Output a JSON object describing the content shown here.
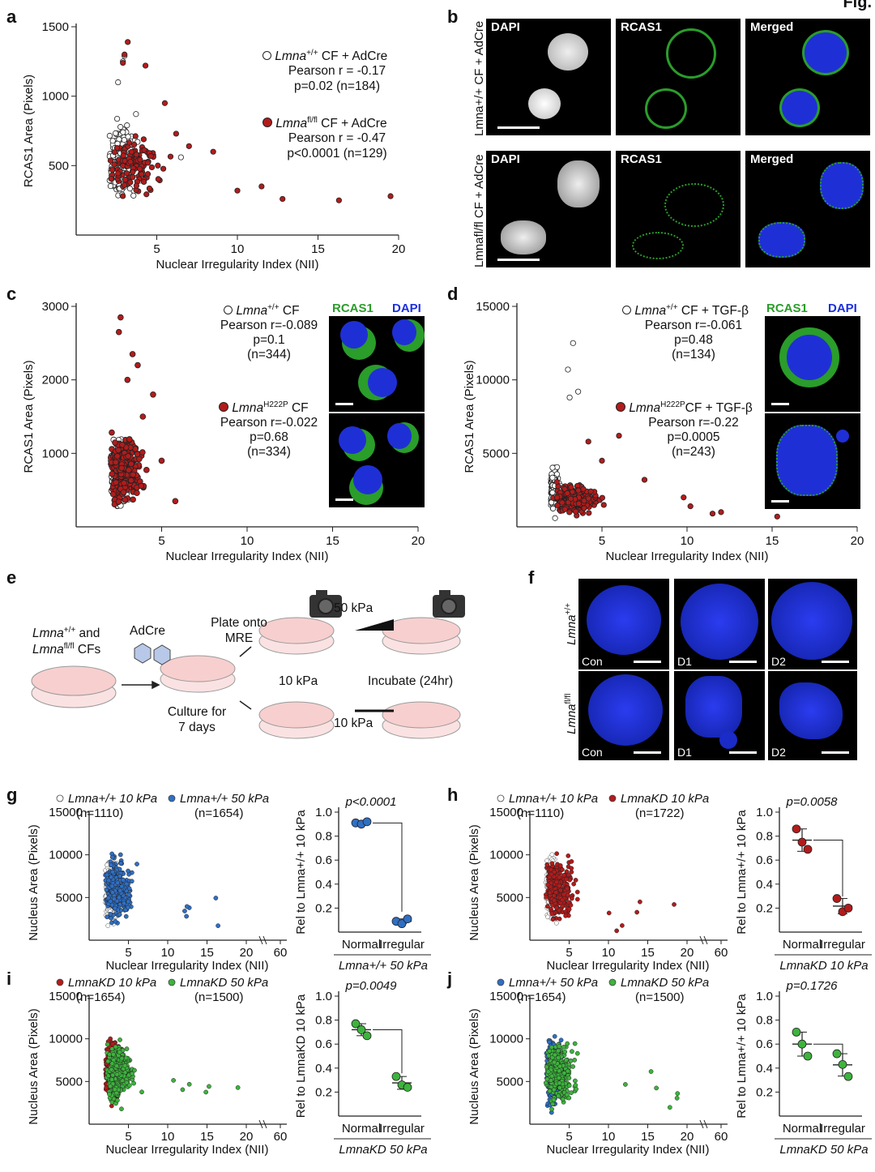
{
  "figure": {
    "label": "Fig."
  },
  "panels": {
    "a": {
      "label": "a",
      "xlabel": "Nuclear Irregularity Index (NII)",
      "ylabel": "RCAS1 Area (Pixels)",
      "xticks": [
        "5",
        "10",
        "15",
        "20"
      ],
      "yticks": [
        "500",
        "1000",
        "1500"
      ],
      "leg1": {
        "gene": "Lmna",
        "sup": "+/+",
        "rest": " CF + AdCre",
        "stat1": "Pearson r = -0.17",
        "stat2": "p=0.02 (n=184)"
      },
      "leg2": {
        "gene": "Lmna",
        "sup": "fl/fl",
        "rest": " CF + AdCre",
        "stat1": "Pearson r = -0.47",
        "stat2": "p<0.0001 (n=129)"
      }
    },
    "b": {
      "label": "b",
      "row1": "Lmna+/+ CF + AdCre",
      "row2": "Lmnafl/fl CF + AdCre",
      "cols": [
        "DAPI",
        "RCAS1",
        "Merged"
      ]
    },
    "c": {
      "label": "c",
      "xlabel": "Nuclear Irregularity Index (NII)",
      "ylabel": "RCAS1 Area (Pixels)",
      "xticks": [
        "5",
        "10",
        "15",
        "20"
      ],
      "yticks": [
        "1000",
        "2000",
        "3000"
      ],
      "leg1": {
        "gene": "Lmna",
        "sup": "+/+",
        "rest": " CF",
        "stat1": "Pearson r=-0.089",
        "stat2": "p=0.1",
        "stat3": "(n=344)"
      },
      "leg2": {
        "gene": "Lmna",
        "sup": "H222P",
        "rest": " CF",
        "stat1": "Pearson r=-0.022",
        "stat2": "p=0.68",
        "stat3": "(n=334)"
      },
      "img_label_green": "RCAS1",
      "img_label_blue": "DAPI"
    },
    "d": {
      "label": "d",
      "xlabel": "Nuclear Irregularity Index (NII)",
      "ylabel": "RCAS1 Area (Pixels)",
      "xticks": [
        "5",
        "10",
        "15",
        "20"
      ],
      "yticks": [
        "5000",
        "10000",
        "15000"
      ],
      "leg1": {
        "gene": "Lmna",
        "sup": "+/+",
        "rest": " CF + TGF-β",
        "stat1": "Pearson r=-0.061",
        "stat2": "p=0.48",
        "stat3": "(n=134)"
      },
      "leg2": {
        "gene": "Lmna",
        "sup": "H222P",
        "rest": "CF + TGF-β",
        "stat1": "Pearson r=-0.22",
        "stat2": "p=0.0005",
        "stat3": "(n=243)"
      },
      "img_label_green": "RCAS1",
      "img_label_blue": "DAPI"
    },
    "e": {
      "label": "e",
      "cells": "Lmna+/+ and",
      "cells2": "Lmnafl/fl CFs",
      "adcre": "AdCre",
      "culture1": "Culture for",
      "culture2": "7 days",
      "plate1": "Plate onto",
      "plate2": "MRE",
      "kpa50": "50 kPa",
      "kpa10a": "10 kPa",
      "kpa10b": "10 kPa",
      "incubate": "Incubate (24hr)"
    },
    "f": {
      "label": "f",
      "row1": "Lmna+/+",
      "row2": "Lmnafl/fl",
      "cols": [
        "Con",
        "D1",
        "D2"
      ]
    },
    "g": {
      "label": "g",
      "leg1": "Lmna+/+ 10 kPa",
      "n1": "(n=1110)",
      "leg2": "Lmna+/+ 50 kPa",
      "n2": "(n=1654)",
      "ylabel": "Nucleus Area (Pixels)",
      "xlabel": "Nuclear Irregularity Index (NII)",
      "xticks": [
        "5",
        "10",
        "15",
        "20",
        "60"
      ],
      "yticks": [
        "5000",
        "10000",
        "15000"
      ],
      "pval": "p<0.0001",
      "rylabel": "Rel to Lmna+/+ 10 kPa",
      "rticks": [
        "0.2",
        "0.4",
        "0.6",
        "0.8",
        "1.0"
      ],
      "cat1": "Normal",
      "cat2": "Irregular",
      "group": "Lmna+/+ 50 kPa"
    },
    "h": {
      "label": "h",
      "leg1": "Lmna+/+ 10 kPa",
      "n1": "(n=1110)",
      "leg2": "LmnaKD 10 kPa",
      "n2": "(n=1722)",
      "ylabel": "Nucleus Area (Pixels)",
      "xlabel": "Nuclear Irregularity Index (NII)",
      "xticks": [
        "5",
        "10",
        "15",
        "20",
        "60"
      ],
      "yticks": [
        "5000",
        "10000",
        "15000"
      ],
      "pval": "p=0.0058",
      "rylabel": "Rel to Lmna+/+ 10 kPa",
      "rticks": [
        "0.2",
        "0.4",
        "0.6",
        "0.8",
        "1.0"
      ],
      "cat1": "Normal",
      "cat2": "Irregular",
      "group": "LmnaKD 10 kPa"
    },
    "i": {
      "label": "i",
      "leg1": "LmnaKD 10 kPa",
      "n1": "(n=1654)",
      "leg2": "LmnaKD 50 kPa",
      "n2": "(n=1500)",
      "ylabel": "Nucleus Area (Pixels)",
      "xlabel": "Nuclear Irregularity Index (NII)",
      "xticks": [
        "5",
        "10",
        "15",
        "20",
        "60"
      ],
      "yticks": [
        "5000",
        "10000",
        "15000"
      ],
      "pval": "p=0.0049",
      "rylabel": "Rel to LmnaKD 10 kPa",
      "rticks": [
        "0.2",
        "0.4",
        "0.6",
        "0.8",
        "1.0"
      ],
      "cat1": "Normal",
      "cat2": "Irregular",
      "group": "LmnaKD 50 kPa"
    },
    "j": {
      "label": "j",
      "leg1": "Lmna+/+ 50 kPa",
      "n1": "(n=1654)",
      "leg2": "LmnaKD 50 kPa",
      "n2": "(n=1500)",
      "ylabel": "Nucleus Area (Pixels)",
      "xlabel": "Nuclear Irregularity Index (NII)",
      "xticks": [
        "5",
        "10",
        "15",
        "20",
        "60"
      ],
      "yticks": [
        "5000",
        "10000",
        "15000"
      ],
      "pval": "p=0.1726",
      "rylabel": "Rel to Lmna+/+ 10 kPa",
      "rticks": [
        "0.2",
        "0.4",
        "0.6",
        "0.8",
        "1.0"
      ],
      "cat1": "Normal",
      "cat2": "Irregular",
      "group": "LmnaKD 50 kPa"
    }
  },
  "colors": {
    "red": "#b31b1b",
    "blue": "#2f6fc4",
    "green": "#3db33d",
    "white": "#ffffff"
  },
  "chart_data": [
    {
      "type": "scatter",
      "panel": "a",
      "xlim": [
        0,
        20
      ],
      "ylim": [
        0,
        1500
      ],
      "series": [
        {
          "name": "Lmna+/+ CF + AdCre",
          "n": 184,
          "x": [
            2.1,
            2.4,
            2.8,
            3.0,
            3.2,
            2.6,
            4.0,
            5.0,
            6.5
          ],
          "y": [
            600,
            700,
            1300,
            1000,
            450,
            550,
            500,
            350,
            550
          ]
        },
        {
          "name": "Lmnafl/fl CF + AdCre",
          "n": 129,
          "x": [
            3.2,
            4.0,
            5.5,
            7.0,
            8.5,
            10.0,
            12.0,
            16.3,
            19.5
          ],
          "y": [
            1390,
            1200,
            950,
            700,
            400,
            300,
            270,
            240,
            280
          ]
        }
      ]
    },
    {
      "type": "scatter",
      "panel": "c",
      "xlim": [
        0,
        20
      ],
      "ylim": [
        0,
        3000
      ],
      "series": [
        {
          "name": "Lmna+/+ CF",
          "n": 344
        },
        {
          "name": "LmnaH222P CF",
          "n": 334,
          "x": [
            2.6,
            3.5,
            5.0,
            5.8
          ],
          "y": [
            2850,
            2200,
            900,
            400
          ]
        }
      ]
    },
    {
      "type": "scatter",
      "panel": "d",
      "xlim": [
        0,
        20
      ],
      "ylim": [
        0,
        15000
      ],
      "series": [
        {
          "name": "Lmna+/+ CF + TGF-β",
          "n": 134,
          "x": [
            3.3,
            3.0
          ],
          "y": [
            12500,
            10700
          ]
        },
        {
          "name": "LmnaH222P CF + TGF-β",
          "n": 243,
          "x": [
            6.0,
            12.0,
            15.3
          ],
          "y": [
            6200,
            1000,
            700
          ]
        }
      ]
    },
    {
      "type": "dotplot",
      "panel": "g",
      "categories": [
        "Normal",
        "Irregular"
      ],
      "values": [
        [
          0.91,
          0.9,
          0.92
        ],
        [
          0.09,
          0.07,
          0.11
        ]
      ],
      "ylim": [
        0,
        1.0
      ]
    },
    {
      "type": "dotplot",
      "panel": "h",
      "categories": [
        "Normal",
        "Irregular"
      ],
      "values": [
        [
          0.86,
          0.75,
          0.69
        ],
        [
          0.28,
          0.17,
          0.2
        ]
      ],
      "ylim": [
        0,
        1.0
      ]
    },
    {
      "type": "dotplot",
      "panel": "i",
      "categories": [
        "Normal",
        "Irregular"
      ],
      "values": [
        [
          0.77,
          0.72,
          0.67
        ],
        [
          0.33,
          0.26,
          0.24
        ]
      ],
      "ylim": [
        0,
        1.0
      ]
    },
    {
      "type": "dotplot",
      "panel": "j",
      "categories": [
        "Normal",
        "Irregular"
      ],
      "values": [
        [
          0.7,
          0.6,
          0.5
        ],
        [
          0.52,
          0.43,
          0.33
        ]
      ],
      "ylim": [
        0,
        1.0
      ]
    }
  ]
}
